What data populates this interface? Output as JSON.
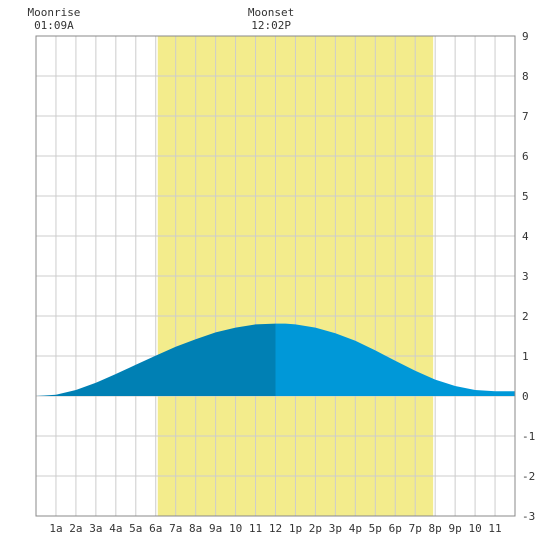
{
  "chart_data": {
    "type": "area",
    "title": "",
    "xlabel": "",
    "ylabel": "",
    "xlim": [
      0,
      24
    ],
    "ylim": [
      -3,
      9
    ],
    "grid": true,
    "x_tick_labels": [
      "1a",
      "2a",
      "3a",
      "4a",
      "5a",
      "6a",
      "7a",
      "8a",
      "9a",
      "10",
      "11",
      "12",
      "1p",
      "2p",
      "3p",
      "4p",
      "5p",
      "6p",
      "7p",
      "8p",
      "9p",
      "10",
      "11"
    ],
    "y_tick_labels": [
      "9",
      "8",
      "7",
      "6",
      "5",
      "4",
      "3",
      "2",
      "1",
      "0",
      "-1",
      "-2",
      "-3"
    ],
    "daylight": {
      "start": 6.1,
      "end": 19.9
    },
    "moon_events": [
      {
        "label": "Moonrise",
        "time": "01:09A",
        "hour": 1.15
      },
      {
        "label": "Moonset",
        "time": "12:02P",
        "hour": 12.03
      }
    ],
    "series": [
      {
        "x": [
          0,
          1,
          2,
          3,
          4,
          5,
          6,
          7,
          8,
          9,
          10,
          11,
          12,
          12.5,
          13,
          14,
          15,
          16,
          17,
          18,
          19,
          20,
          21,
          22,
          23,
          24
        ],
        "y": [
          0.0,
          0.03,
          0.15,
          0.33,
          0.55,
          0.78,
          1.01,
          1.23,
          1.42,
          1.59,
          1.71,
          1.79,
          1.81,
          1.81,
          1.79,
          1.71,
          1.57,
          1.38,
          1.14,
          0.88,
          0.63,
          0.41,
          0.25,
          0.15,
          0.12,
          0.12
        ]
      }
    ],
    "colors": {
      "daylight": "#f3ec8c",
      "area_rising": "#0080b4",
      "area_falling": "#0098d8",
      "grid": "#cccccc",
      "border": "#888888",
      "plot_bg": "#ffffff"
    }
  }
}
